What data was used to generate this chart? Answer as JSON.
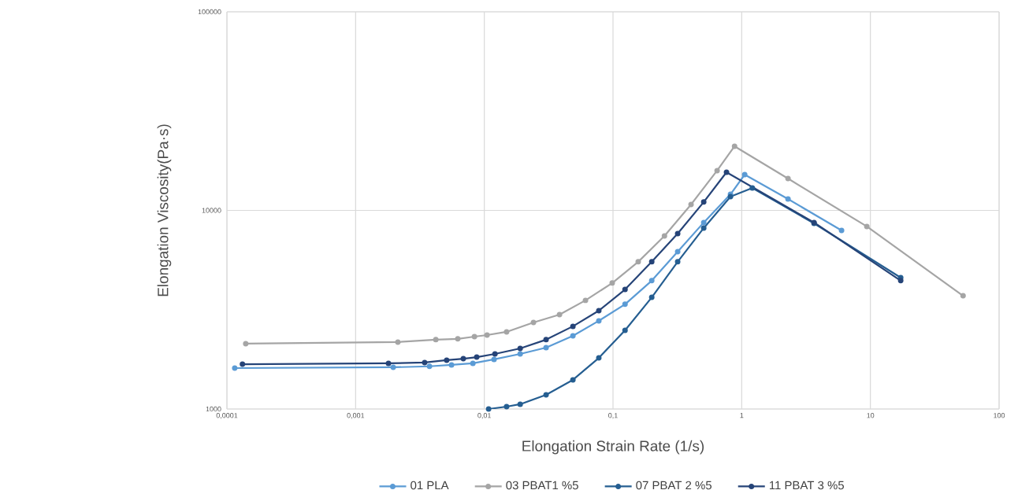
{
  "chart_data": {
    "type": "line",
    "xlabel": "Elongation Strain Rate (1/s)",
    "ylabel": "Elongation Viscosity(Pa·s)",
    "log": "xy",
    "xlim": [
      0.0001,
      100
    ],
    "ylim": [
      1000,
      100000
    ],
    "xticks": [
      {
        "value": 0.0001,
        "label": "0,0001"
      },
      {
        "value": 0.001,
        "label": "0,001"
      },
      {
        "value": 0.01,
        "label": "0,01"
      },
      {
        "value": 0.1,
        "label": "0,1"
      },
      {
        "value": 1,
        "label": "1"
      },
      {
        "value": 10,
        "label": "10"
      },
      {
        "value": 100,
        "label": "100"
      }
    ],
    "yticks": [
      1000,
      10000,
      100000
    ],
    "grid": true,
    "legend": "bottom",
    "marker": "circle",
    "line_style": "solid",
    "series": [
      {
        "name": "01 PLA",
        "color": "#5b9bd5",
        "x": [
          0.000115,
          0.00196,
          0.00375,
          0.00556,
          0.00815,
          0.0119,
          0.019,
          0.0302,
          0.0488,
          0.0776,
          0.124,
          0.2,
          0.318,
          0.507,
          0.818,
          1.055,
          2.29,
          5.97
        ],
        "values": [
          1607,
          1622,
          1640,
          1667,
          1698,
          1778,
          1893,
          2037,
          2335,
          2779,
          3367,
          4429,
          6199,
          8690,
          12050,
          15140,
          11410,
          7925
        ]
      },
      {
        "name": "03 PBAT1 %5",
        "color": "#a5a5a5",
        "x": [
          0.00014,
          0.00213,
          0.0042,
          0.00622,
          0.00838,
          0.0105,
          0.0149,
          0.0241,
          0.0384,
          0.0611,
          0.0986,
          0.157,
          0.251,
          0.404,
          0.644,
          0.88,
          2.29,
          9.38,
          52.5
        ],
        "values": [
          2133,
          2173,
          2234,
          2255,
          2314,
          2357,
          2445,
          2728,
          2988,
          3524,
          4307,
          5510,
          7437,
          10710,
          15860,
          21030,
          14460,
          8300,
          3715
        ]
      },
      {
        "name": "07 PBAT 2 %5",
        "color": "#255e91",
        "x": [
          0.0108,
          0.0149,
          0.019,
          0.0302,
          0.0488,
          0.0776,
          0.124,
          0.2,
          0.318,
          0.507,
          0.818,
          1.21,
          3.65,
          17.2
        ],
        "values": [
          1000,
          1028,
          1057,
          1178,
          1402,
          1808,
          2489,
          3648,
          5510,
          8150,
          11720,
          12970,
          8600,
          4585
        ]
      },
      {
        "name": "11 PBAT 3 %5",
        "color": "#264478",
        "x": [
          0.000132,
          0.0018,
          0.00344,
          0.0051,
          0.00687,
          0.00873,
          0.0121,
          0.019,
          0.0302,
          0.0488,
          0.0776,
          0.124,
          0.2,
          0.318,
          0.507,
          0.762,
          3.65,
          17.2
        ],
        "values": [
          1681,
          1698,
          1714,
          1762,
          1792,
          1824,
          1893,
          2018,
          2234,
          2608,
          3128,
          3998,
          5510,
          7640,
          11020,
          15560,
          8690,
          4429
        ]
      }
    ]
  }
}
